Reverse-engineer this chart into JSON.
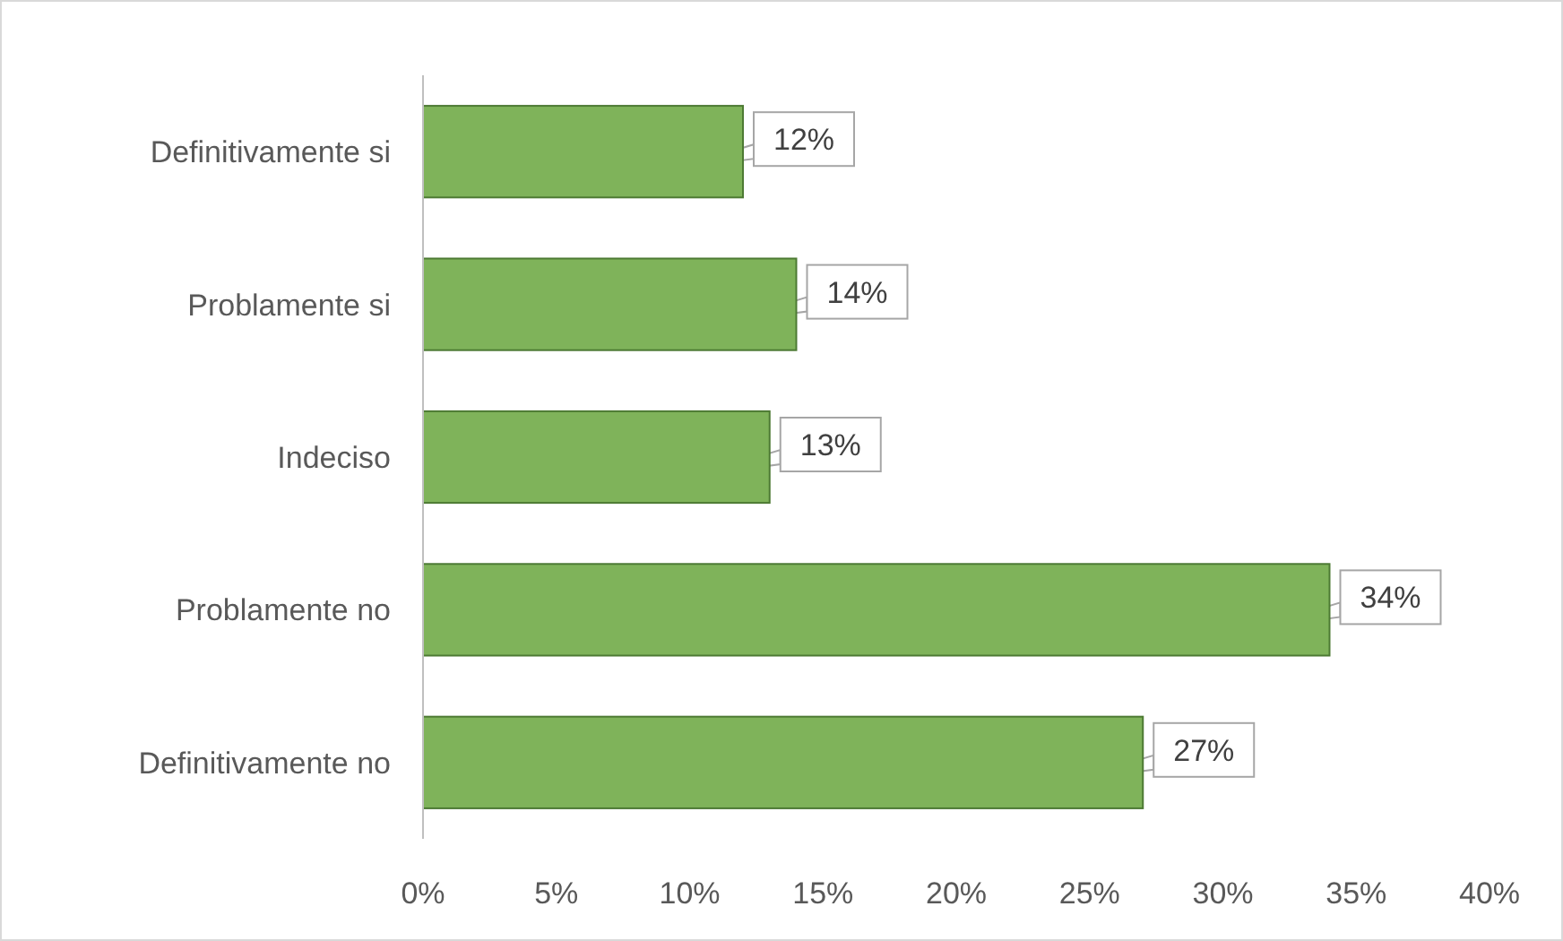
{
  "chart_data": {
    "type": "bar",
    "orientation": "horizontal",
    "categories": [
      "Definitivamente si",
      "Problamente si",
      "Indeciso",
      "Problamente no",
      "Definitivamente no"
    ],
    "values": [
      12,
      14,
      13,
      34,
      27
    ],
    "value_labels": [
      "12%",
      "14%",
      "13%",
      "34%",
      "27%"
    ],
    "color": "#7fb35a",
    "xlim": [
      0,
      40
    ],
    "xticks": [
      {
        "value": 0,
        "label": "0%"
      },
      {
        "value": 5,
        "label": "5%"
      },
      {
        "value": 10,
        "label": "10%"
      },
      {
        "value": 15,
        "label": "15%"
      },
      {
        "value": 20,
        "label": "20%"
      },
      {
        "value": 25,
        "label": "25%"
      },
      {
        "value": 30,
        "label": "30%"
      },
      {
        "value": 35,
        "label": "35%"
      },
      {
        "value": 40,
        "label": "40%"
      }
    ],
    "grid": false
  }
}
